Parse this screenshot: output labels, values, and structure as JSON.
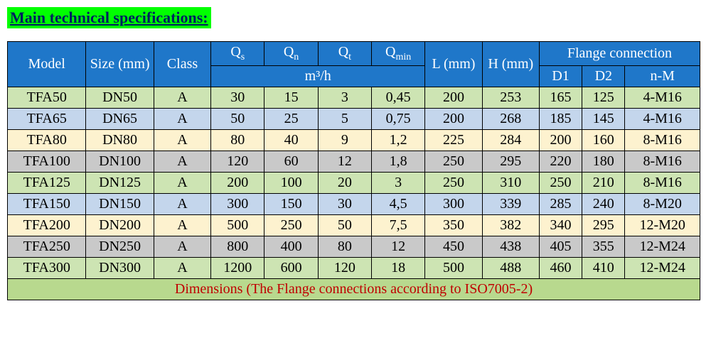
{
  "title": "Main technical specifications:",
  "header": {
    "model": "Model",
    "size": "Size (mm)",
    "class": "Class",
    "qs": "Q",
    "qs_sub": "s",
    "qn": "Q",
    "qn_sub": "n",
    "qt": "Q",
    "qt_sub": "t",
    "qmin": "Q",
    "qmin_sub": "min",
    "unit": "m³/h",
    "L": "L (mm)",
    "H": "H (mm)",
    "flange": "Flange connection",
    "d1": "D1",
    "d2": "D2",
    "nm": "n-M"
  },
  "row_colors": {
    "green": "#cde4b3",
    "blue": "#c4d6ec",
    "beige": "#fdf2cf",
    "gray": "#c9c9c9"
  },
  "rows": [
    {
      "color": "green",
      "model": "TFA50",
      "size": "DN50",
      "class": "A",
      "qs": "30",
      "qn": "15",
      "qt": "3",
      "qmin": "0,45",
      "L": "200",
      "H": "253",
      "d1": "165",
      "d2": "125",
      "nm": "4-M16"
    },
    {
      "color": "blue",
      "model": "TFA65",
      "size": "DN65",
      "class": "A",
      "qs": "50",
      "qn": "25",
      "qt": "5",
      "qmin": "0,75",
      "L": "200",
      "H": "268",
      "d1": "185",
      "d2": "145",
      "nm": "4-M16"
    },
    {
      "color": "beige",
      "model": "TFA80",
      "size": "DN80",
      "class": "A",
      "qs": "80",
      "qn": "40",
      "qt": "9",
      "qmin": "1,2",
      "L": "225",
      "H": "284",
      "d1": "200",
      "d2": "160",
      "nm": "8-M16"
    },
    {
      "color": "gray",
      "model": "TFA100",
      "size": "DN100",
      "class": "A",
      "qs": "120",
      "qn": "60",
      "qt": "12",
      "qmin": "1,8",
      "L": "250",
      "H": "295",
      "d1": "220",
      "d2": "180",
      "nm": "8-M16"
    },
    {
      "color": "green",
      "model": "TFA125",
      "size": "DN125",
      "class": "A",
      "qs": "200",
      "qn": "100",
      "qt": "20",
      "qmin": "3",
      "L": "250",
      "H": "310",
      "d1": "250",
      "d2": "210",
      "nm": "8-M16"
    },
    {
      "color": "blue",
      "model": "TFA150",
      "size": "DN150",
      "class": "A",
      "qs": "300",
      "qn": "150",
      "qt": "30",
      "qmin": "4,5",
      "L": "300",
      "H": "339",
      "d1": "285",
      "d2": "240",
      "nm": "8-M20"
    },
    {
      "color": "beige",
      "model": "TFA200",
      "size": "DN200",
      "class": "A",
      "qs": "500",
      "qn": "250",
      "qt": "50",
      "qmin": "7,5",
      "L": "350",
      "H": "382",
      "d1": "340",
      "d2": "295",
      "nm": "12-M20"
    },
    {
      "color": "gray",
      "model": "TFA250",
      "size": "DN250",
      "class": "A",
      "qs": "800",
      "qn": "400",
      "qt": "80",
      "qmin": "12",
      "L": "450",
      "H": "438",
      "d1": "405",
      "d2": "355",
      "nm": "12-M24"
    },
    {
      "color": "green",
      "model": "TFA300",
      "size": "DN300",
      "class": "A",
      "qs": "1200",
      "qn": "600",
      "qt": "120",
      "qmin": "18",
      "L": "500",
      "H": "488",
      "d1": "460",
      "d2": "410",
      "nm": "12-M24"
    }
  ],
  "footer": "Dimensions (The Flange connections according to ISO7005-2)"
}
